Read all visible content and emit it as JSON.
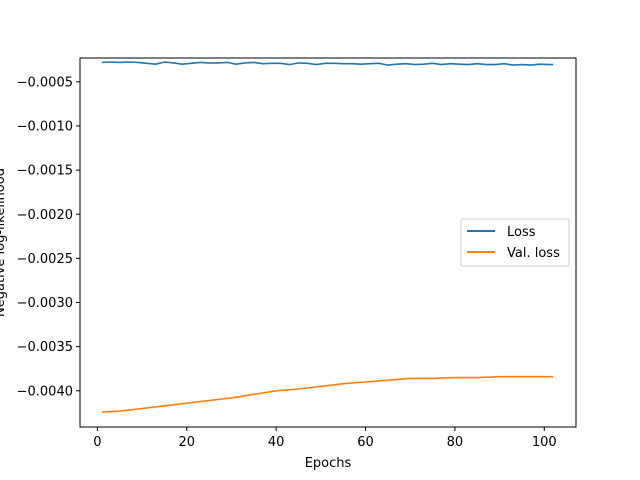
{
  "chart_data": {
    "type": "line",
    "title": "",
    "xlabel": "Epochs",
    "ylabel": "Negative log-likelihood",
    "xlim": [
      -3.9,
      107.1
    ],
    "ylim": [
      -0.00441,
      -0.00023
    ],
    "xticks": [
      0,
      20,
      40,
      60,
      80,
      100
    ],
    "yticks": [
      -0.0005,
      -0.001,
      -0.0015,
      -0.002,
      -0.0025,
      -0.003,
      -0.0035,
      -0.004
    ],
    "ytick_labels": [
      "−0.0005",
      "−0.0010",
      "−0.0015",
      "−0.0020",
      "−0.0025",
      "−0.0030",
      "−0.0035",
      "−0.0040"
    ],
    "grid": false,
    "legend": "center-right",
    "series": [
      {
        "name": "Loss",
        "color": "#1f77b4",
        "x": [
          1,
          3,
          5,
          7,
          9,
          11,
          13,
          15,
          17,
          19,
          21,
          23,
          25,
          27,
          29,
          31,
          33,
          35,
          37,
          39,
          41,
          43,
          45,
          47,
          49,
          51,
          53,
          55,
          57,
          59,
          61,
          63,
          65,
          67,
          69,
          71,
          73,
          75,
          77,
          79,
          81,
          83,
          85,
          87,
          89,
          91,
          93,
          95,
          97,
          99,
          101,
          102
        ],
        "y": [
          -0.00028,
          -0.000275,
          -0.00028,
          -0.000275,
          -0.00028,
          -0.00029,
          -0.0003,
          -0.000275,
          -0.000285,
          -0.0003,
          -0.00029,
          -0.00028,
          -0.000285,
          -0.000285,
          -0.00028,
          -0.0003,
          -0.000285,
          -0.00028,
          -0.000295,
          -0.00029,
          -0.00029,
          -0.000305,
          -0.000285,
          -0.00029,
          -0.000305,
          -0.00029,
          -0.00029,
          -0.000295,
          -0.000295,
          -0.0003,
          -0.000295,
          -0.00029,
          -0.00031,
          -0.0003,
          -0.000295,
          -0.000305,
          -0.0003,
          -0.00029,
          -0.000305,
          -0.000295,
          -0.0003,
          -0.000305,
          -0.000295,
          -0.000305,
          -0.000305,
          -0.000295,
          -0.00031,
          -0.000305,
          -0.00031,
          -0.0003,
          -0.000305,
          -0.000305
        ]
      },
      {
        "name": "Val. loss",
        "color": "#ff7f0e",
        "x": [
          1,
          5,
          10,
          15,
          20,
          25,
          30,
          35,
          40,
          45,
          50,
          55,
          60,
          65,
          70,
          75,
          80,
          85,
          90,
          95,
          102
        ],
        "y": [
          -0.00424,
          -0.00423,
          -0.0042,
          -0.00417,
          -0.00414,
          -0.00411,
          -0.00408,
          -0.00404,
          -0.004,
          -0.00398,
          -0.00395,
          -0.00392,
          -0.0039,
          -0.00388,
          -0.00386,
          -0.00386,
          -0.00385,
          -0.00385,
          -0.00384,
          -0.00384,
          -0.00384
        ]
      }
    ]
  }
}
